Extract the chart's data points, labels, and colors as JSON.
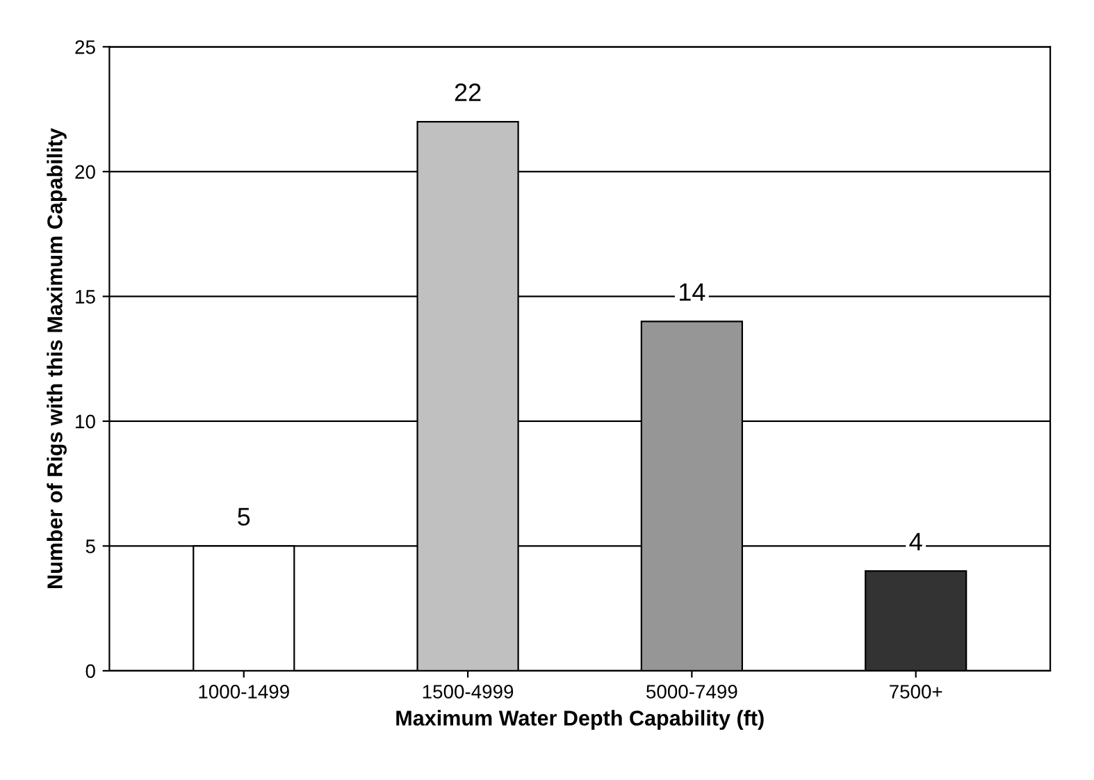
{
  "chart_data": {
    "type": "bar",
    "xlabel": "Maximum Water Depth Capability (ft)",
    "ylabel": "Number of Rigs with this Maximum Capability",
    "categories": [
      "1000-1499",
      "1500-4999",
      "5000-7499",
      "7500+"
    ],
    "values": [
      5,
      22,
      14,
      4
    ],
    "colors": [
      "#ffffff",
      "#c0c0c0",
      "#969696",
      "#333333"
    ],
    "ylim": [
      0,
      25
    ],
    "yticks": [
      0,
      5,
      10,
      15,
      20,
      25
    ],
    "grid": "y",
    "data_labels": true
  }
}
